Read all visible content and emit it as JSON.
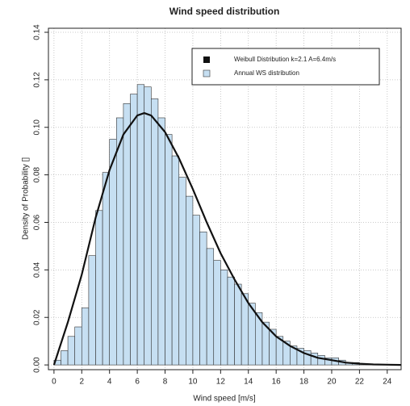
{
  "chart_data": {
    "type": "histogram",
    "title": "Wind speed distribution",
    "xlabel": "Wind speed [m/s]",
    "ylabel": "Density of Probability []",
    "name": "Annual WS distribution",
    "color": "#c6dff2",
    "bins": [
      0,
      0.5,
      1,
      1.5,
      2,
      2.5,
      3,
      3.5,
      4,
      4.5,
      5,
      5.5,
      6,
      6.5,
      7,
      7.5,
      8,
      8.5,
      9,
      9.5,
      10,
      10.5,
      11,
      11.5,
      12,
      12.5,
      13,
      13.5,
      14,
      14.5,
      15,
      15.5,
      16,
      16.5,
      17,
      17.5,
      18,
      18.5,
      19,
      19.5,
      20,
      20.5,
      21,
      21.5,
      22,
      22.5,
      23
    ],
    "values": [
      0.002,
      0.006,
      0.012,
      0.016,
      0.024,
      0.046,
      0.065,
      0.081,
      0.095,
      0.104,
      0.11,
      0.114,
      0.118,
      0.117,
      0.112,
      0.104,
      0.097,
      0.088,
      0.079,
      0.071,
      0.063,
      0.056,
      0.049,
      0.044,
      0.04,
      0.037,
      0.034,
      0.03,
      0.026,
      0.022,
      0.018,
      0.015,
      0.012,
      0.01,
      0.008,
      0.007,
      0.006,
      0.005,
      0.004,
      0.003,
      0.003,
      0.002,
      0.001,
      0.001,
      0.0005,
      0.0003
    ],
    "curve": {
      "type": "line",
      "name": "Weibull Distribution k=2.1 A=6.4m/s",
      "color": "#111111",
      "x": [
        0,
        1,
        2,
        3,
        4,
        5,
        6,
        6.5,
        7,
        8,
        9,
        10,
        11,
        12,
        13,
        14,
        15,
        16,
        17,
        18,
        19,
        20,
        21,
        22,
        23,
        24,
        25
      ],
      "values": [
        0,
        0.018,
        0.038,
        0.062,
        0.082,
        0.097,
        0.105,
        0.106,
        0.105,
        0.098,
        0.087,
        0.074,
        0.06,
        0.047,
        0.036,
        0.026,
        0.018,
        0.012,
        0.008,
        0.005,
        0.003,
        0.002,
        0.001,
        0.0005,
        0.0002,
        0.0001,
        0
      ]
    },
    "xlim": [
      -0.4,
      25
    ],
    "ylim": [
      -0.002,
      0.1417
    ],
    "xticks": [
      0,
      2,
      4,
      6,
      8,
      10,
      12,
      14,
      16,
      18,
      20,
      22,
      24
    ],
    "yticks": [
      {
        "value": 0,
        "label": "0.00"
      },
      {
        "value": 0.02,
        "label": "0.02"
      },
      {
        "value": 0.04,
        "label": "0.04"
      },
      {
        "value": 0.06,
        "label": "0.06"
      },
      {
        "value": 0.08,
        "label": "0.08"
      },
      {
        "value": 0.1,
        "label": "0.10"
      },
      {
        "value": 0.12,
        "label": "0.12"
      },
      {
        "value": 0.14,
        "label": "0.14"
      }
    ],
    "grid": true,
    "legend": "upper right"
  }
}
